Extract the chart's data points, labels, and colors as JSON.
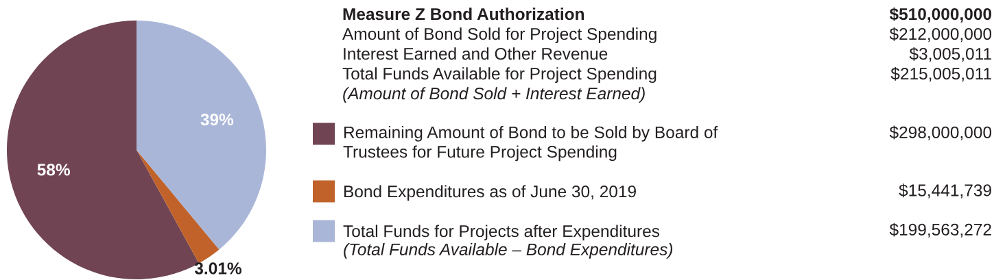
{
  "chart_data": {
    "type": "pie",
    "categories": [
      "Remaining Amount of Bond to be Sold by Board of Trustees for Future Project Spending",
      "Bond Expenditures as of June 30, 2019",
      "Total Funds for Projects after Expenditures"
    ],
    "values": [
      58,
      3.01,
      39
    ],
    "colors": [
      "#704452",
      "#c0622a",
      "#a9b6d7"
    ],
    "value_labels": [
      "58%",
      "3.01%",
      "39%"
    ],
    "legend": "right",
    "annotations": [
      "Measure Z Bond Authorization",
      "$510,000,000",
      "Amount of Bond Sold for Project Spending",
      "$212,000,000",
      "Interest Earned and Other Revenue",
      "$3,005,011",
      "Total Funds Available for Project Spending",
      "$215,005,011",
      "(Amount of Bond Sold + Interest Earned)",
      "$298,000,000",
      "$15,441,739",
      "$199,563,272",
      "(Total Funds Available – Bond Expenditures)"
    ]
  }
}
